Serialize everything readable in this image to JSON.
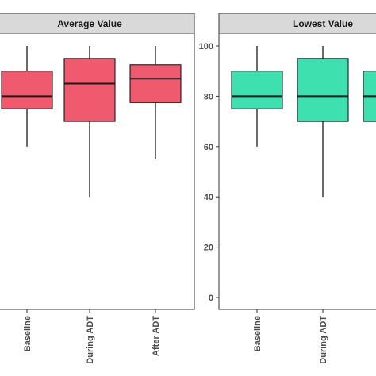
{
  "chart_data": {
    "type": "box",
    "categories": [
      "Baseline",
      "During ADT",
      "After ADT"
    ],
    "ylim": [
      0,
      100
    ],
    "yticks": [
      0,
      20,
      40,
      60,
      80,
      100
    ],
    "grid": false,
    "panels": [
      {
        "title": "Average Value",
        "color": "#ef5a6f",
        "boxes": [
          {
            "category": "Baseline",
            "min": 60,
            "q1": 75,
            "median": 80,
            "q3": 90,
            "max": 100
          },
          {
            "category": "During ADT",
            "min": 40,
            "q1": 70,
            "median": 85,
            "q3": 95,
            "max": 100
          },
          {
            "category": "After ADT",
            "min": 55,
            "q1": 77.5,
            "median": 87,
            "q3": 92.5,
            "max": 100
          }
        ]
      },
      {
        "title": "Lowest Value",
        "color": "#3fe0b0",
        "boxes": [
          {
            "category": "Baseline",
            "min": 60,
            "q1": 75,
            "median": 80,
            "q3": 90,
            "max": 100
          },
          {
            "category": "During ADT",
            "min": 40,
            "q1": 70,
            "median": 80,
            "q3": 95,
            "max": 100
          },
          {
            "category": "After ADT",
            "q1": 70,
            "median": 80,
            "q3": 90
          }
        ]
      }
    ]
  }
}
